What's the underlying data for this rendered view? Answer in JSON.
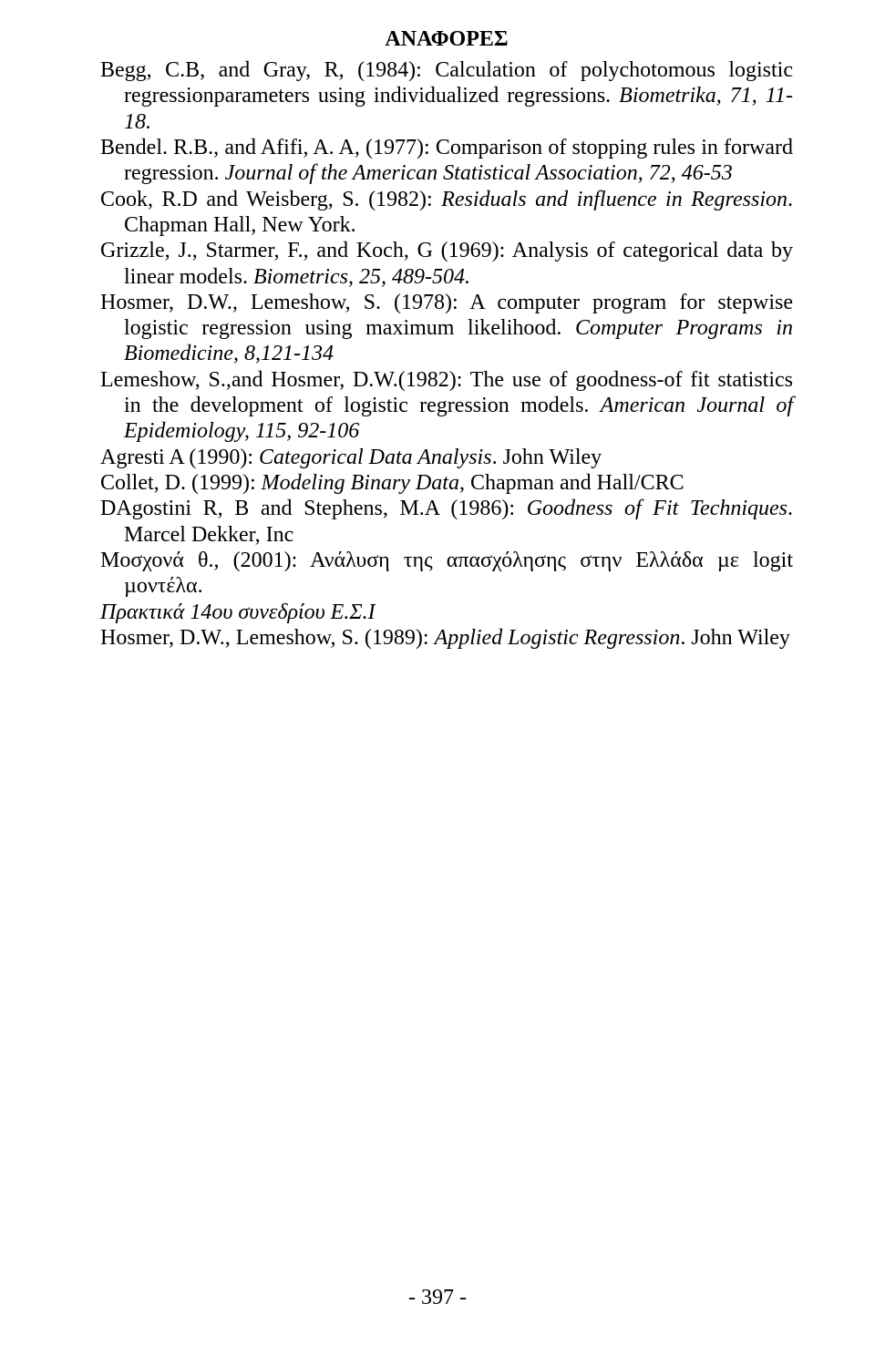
{
  "heading": "ΑΝΑΦΟΡΕΣ",
  "refs": [
    [
      {
        "t": "Begg, C.B, and Gray, R, (1984): Calculation of polychotomous logistic regressionparameters using individualized regressions. ",
        "i": false
      },
      {
        "t": "Biometrika, 71, 11-18.",
        "i": true
      }
    ],
    [
      {
        "t": "Bendel. R.B., and Afifi, A. A, (1977): Comparison of stopping rules in forward regression. ",
        "i": false
      },
      {
        "t": "Journal of the American Statistical Association, 72, 46-53",
        "i": true
      }
    ],
    [
      {
        "t": "Cook, R.D and Weisberg, S. (1982): ",
        "i": false
      },
      {
        "t": "Residuals and influence in Regression",
        "i": true
      },
      {
        "t": ". Chapman Hall, New York.",
        "i": false
      }
    ],
    [
      {
        "t": "Grizzle, J., Starmer, F., and Koch, G (1969): Analysis of categorical data by linear models. ",
        "i": false
      },
      {
        "t": "Biometrics, 25, 489-504.",
        "i": true
      }
    ],
    [
      {
        "t": "Hosmer, D.W., Lemeshow, S. (1978): A computer program for stepwise logistic regression using maximum likelihood. ",
        "i": false
      },
      {
        "t": "Computer Programs in Biomedicine, 8,121-134",
        "i": true
      }
    ],
    [
      {
        "t": "Lemeshow, S.,and Hosmer, D.W.(1982): The use of goodness-of fit statistics in the development of logistic regression models. ",
        "i": false
      },
      {
        "t": "American Journal of Epidemiology, 115, 92-106",
        "i": true
      }
    ],
    [
      {
        "t": "Agresti A (1990): ",
        "i": false
      },
      {
        "t": "Categorical Data Analysis",
        "i": true
      },
      {
        "t": ". John Wiley",
        "i": false
      }
    ],
    [
      {
        "t": "Collet, D. (1999): ",
        "i": false
      },
      {
        "t": "Modeling Binary Data",
        "i": true
      },
      {
        "t": ", Chapman and Hall/CRC",
        "i": false
      }
    ],
    [
      {
        "t": "DAgostini R, B and Stephens, M.A (1986): ",
        "i": false
      },
      {
        "t": "Goodness of Fit Techniques",
        "i": true
      },
      {
        "t": ". Marcel Dekker, Inc",
        "i": false
      }
    ],
    [
      {
        "t": "Μοσχονά θ., (2001): Ανάλυση της απασχόλησης στην Ελλάδα µε logit µοντέλα.",
        "i": false
      }
    ],
    [
      {
        "t": "Πρακτικά 14ου συνεδρίου Ε.Σ.Ι",
        "i": true
      }
    ],
    [
      {
        "t": "Hosmer, D.W., Lemeshow, S. (1989): ",
        "i": false
      },
      {
        "t": "Applied Logistic Regression",
        "i": true
      },
      {
        "t": ". John Wiley",
        "i": false
      }
    ]
  ],
  "pageNumber": "- 397 -"
}
